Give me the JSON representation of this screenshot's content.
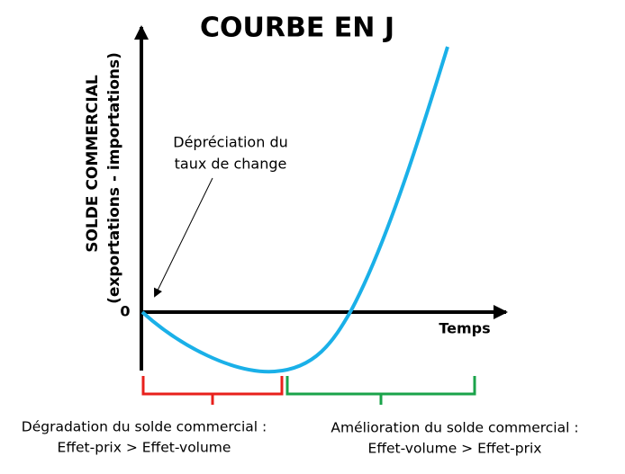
{
  "title": "COURBE EN J",
  "y_axis": {
    "label": "SOLDE COMMERCIAL",
    "sublabel": "(exportations - importations)",
    "origin": "0"
  },
  "x_axis": {
    "label": "Temps"
  },
  "annotation": {
    "lines": [
      "Dépréciation du",
      "taux de change"
    ]
  },
  "phases": [
    {
      "lines": [
        "Dégradation du solde commercial :",
        "Effet-prix > Effet-volume"
      ],
      "color": "#e8201c"
    },
    {
      "lines": [
        "Amélioration du solde commercial :",
        "Effet-volume > Effet-prix"
      ],
      "color": "#1aa34a"
    }
  ],
  "curve_color": "#1ab0e8"
}
